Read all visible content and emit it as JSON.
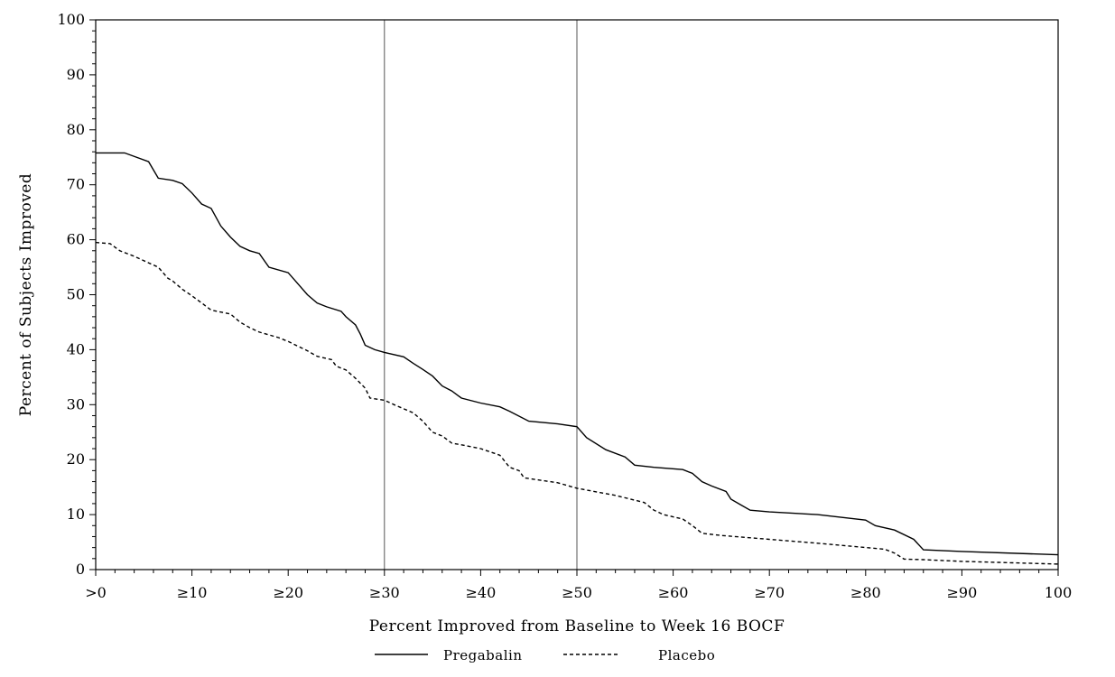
{
  "chart_data": {
    "type": "line",
    "title": "",
    "xlabel": "Percent Improved from Baseline to Week 16 BOCF",
    "ylabel": "Percent of Subjects Improved",
    "xlim": [
      0,
      100
    ],
    "ylim": [
      0,
      100
    ],
    "x_ticks": [
      {
        "value": 0,
        "label": ">0"
      },
      {
        "value": 10,
        "label": "≥10"
      },
      {
        "value": 20,
        "label": "≥20"
      },
      {
        "value": 30,
        "label": "≥30"
      },
      {
        "value": 40,
        "label": "≥40"
      },
      {
        "value": 50,
        "label": "≥50"
      },
      {
        "value": 60,
        "label": "≥60"
      },
      {
        "value": 70,
        "label": "≥70"
      },
      {
        "value": 80,
        "label": "≥80"
      },
      {
        "value": 90,
        "label": "≥90"
      },
      {
        "value": 100,
        "label": "100"
      }
    ],
    "y_ticks": [
      0,
      10,
      20,
      30,
      40,
      50,
      60,
      70,
      80,
      90,
      100
    ],
    "reference_lines_x": [
      30,
      50
    ],
    "grid": false,
    "legend_position": "bottom",
    "series": [
      {
        "name": "Pregabalin",
        "line_style": "solid",
        "color": "#000000",
        "points": [
          [
            0,
            75.8
          ],
          [
            3,
            75.8
          ],
          [
            5.5,
            74.2
          ],
          [
            6.5,
            71.2
          ],
          [
            8,
            70.8
          ],
          [
            9,
            70.2
          ],
          [
            10,
            68.5
          ],
          [
            11,
            66.5
          ],
          [
            12,
            65.7
          ],
          [
            13,
            62.5
          ],
          [
            14,
            60.5
          ],
          [
            15,
            58.8
          ],
          [
            16,
            58
          ],
          [
            17,
            57.5
          ],
          [
            18,
            55
          ],
          [
            20,
            54
          ],
          [
            21,
            52
          ],
          [
            22,
            50
          ],
          [
            23,
            48.5
          ],
          [
            24,
            47.8
          ],
          [
            25.5,
            47
          ],
          [
            26,
            46
          ],
          [
            27,
            44.5
          ],
          [
            27.5,
            42.8
          ],
          [
            28,
            40.8
          ],
          [
            29,
            40
          ],
          [
            30,
            39.5
          ],
          [
            32,
            38.7
          ],
          [
            33,
            37.5
          ],
          [
            34,
            36.4
          ],
          [
            35,
            35.2
          ],
          [
            36,
            33.4
          ],
          [
            37,
            32.5
          ],
          [
            38,
            31.2
          ],
          [
            40,
            30.3
          ],
          [
            42,
            29.6
          ],
          [
            43,
            28.8
          ],
          [
            45,
            27
          ],
          [
            48,
            26.5
          ],
          [
            50,
            26
          ],
          [
            51,
            24
          ],
          [
            53,
            21.8
          ],
          [
            55,
            20.5
          ],
          [
            56,
            19
          ],
          [
            58,
            18.6
          ],
          [
            61,
            18.2
          ],
          [
            62,
            17.5
          ],
          [
            63,
            16
          ],
          [
            64,
            15.2
          ],
          [
            65.5,
            14.2
          ],
          [
            66,
            12.8
          ],
          [
            67,
            11.8
          ],
          [
            68,
            10.8
          ],
          [
            70,
            10.5
          ],
          [
            75,
            10
          ],
          [
            80,
            9
          ],
          [
            81,
            8
          ],
          [
            83,
            7.2
          ],
          [
            85,
            5.5
          ],
          [
            86,
            3.6
          ],
          [
            90,
            3.3
          ],
          [
            100,
            2.7
          ]
        ]
      },
      {
        "name": "Placebo",
        "line_style": "dashed",
        "color": "#000000",
        "points": [
          [
            0,
            59.5
          ],
          [
            1.5,
            59.3
          ],
          [
            2.5,
            58
          ],
          [
            4,
            57
          ],
          [
            5.5,
            55.8
          ],
          [
            6.5,
            55
          ],
          [
            7.5,
            53
          ],
          [
            8,
            52.5
          ],
          [
            9,
            51
          ],
          [
            10,
            49.8
          ],
          [
            11,
            48.5
          ],
          [
            12,
            47.2
          ],
          [
            14,
            46.5
          ],
          [
            15,
            45
          ],
          [
            16,
            44
          ],
          [
            17,
            43.2
          ],
          [
            19,
            42.2
          ],
          [
            20,
            41.5
          ],
          [
            22,
            39.8
          ],
          [
            23,
            38.8
          ],
          [
            24.5,
            38.2
          ],
          [
            25,
            37
          ],
          [
            26,
            36.3
          ],
          [
            27,
            34.8
          ],
          [
            28,
            33
          ],
          [
            28.5,
            31.2
          ],
          [
            30,
            30.8
          ],
          [
            31,
            30
          ],
          [
            33,
            28.5
          ],
          [
            34,
            27
          ],
          [
            35,
            25
          ],
          [
            36,
            24.3
          ],
          [
            37,
            23
          ],
          [
            38,
            22.7
          ],
          [
            40,
            22
          ],
          [
            42,
            20.8
          ],
          [
            43,
            18.6
          ],
          [
            44,
            18
          ],
          [
            44.5,
            16.7
          ],
          [
            46,
            16.3
          ],
          [
            48,
            15.8
          ],
          [
            50,
            14.8
          ],
          [
            54,
            13.5
          ],
          [
            57,
            12.2
          ],
          [
            58,
            10.8
          ],
          [
            59,
            10
          ],
          [
            61,
            9.2
          ],
          [
            62,
            8
          ],
          [
            63,
            6.6
          ],
          [
            65,
            6.2
          ],
          [
            70,
            5.5
          ],
          [
            75,
            4.8
          ],
          [
            82,
            3.7
          ],
          [
            83,
            3
          ],
          [
            84,
            1.9
          ],
          [
            86,
            1.8
          ],
          [
            90,
            1.5
          ],
          [
            100,
            1
          ]
        ]
      }
    ]
  }
}
